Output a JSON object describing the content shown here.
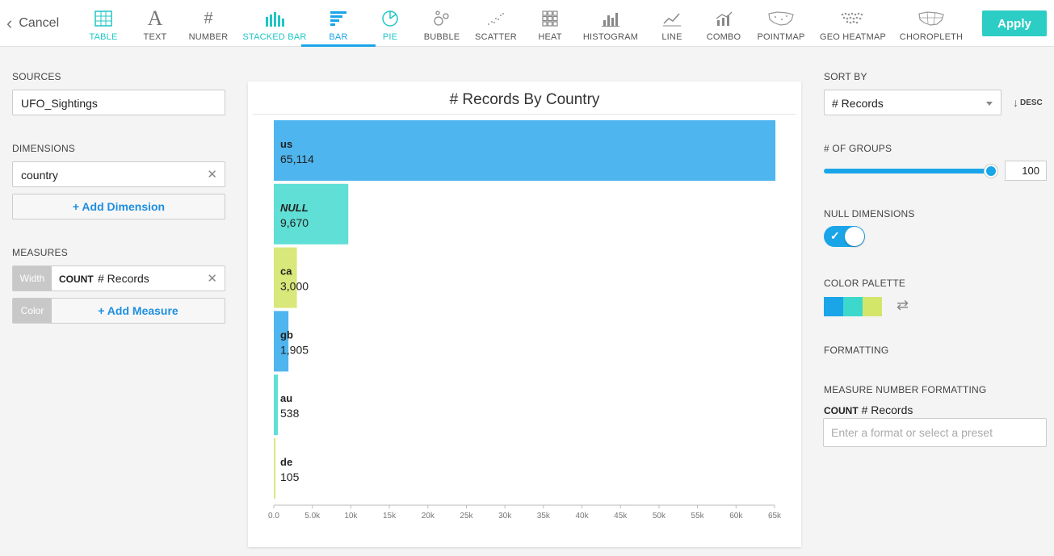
{
  "toolbar": {
    "cancel_label": "Cancel",
    "apply_label": "Apply",
    "chart_types": [
      {
        "label": "TABLE",
        "icon": "table-icon",
        "state": "teal"
      },
      {
        "label": "TEXT",
        "icon": "text-icon",
        "state": ""
      },
      {
        "label": "NUMBER",
        "icon": "number-icon",
        "state": ""
      },
      {
        "label": "STACKED BAR",
        "icon": "stacked-bar-icon",
        "state": "teal"
      },
      {
        "label": "BAR",
        "icon": "bar-icon",
        "state": "active"
      },
      {
        "label": "PIE",
        "icon": "pie-icon",
        "state": "teal"
      },
      {
        "label": "BUBBLE",
        "icon": "bubble-icon",
        "state": ""
      },
      {
        "label": "SCATTER",
        "icon": "scatter-icon",
        "state": ""
      },
      {
        "label": "HEAT",
        "icon": "heat-icon",
        "state": ""
      },
      {
        "label": "HISTOGRAM",
        "icon": "histogram-icon",
        "state": ""
      },
      {
        "label": "LINE",
        "icon": "line-icon",
        "state": ""
      },
      {
        "label": "COMBO",
        "icon": "combo-icon",
        "state": ""
      },
      {
        "label": "POINTMAP",
        "icon": "pointmap-icon",
        "state": ""
      },
      {
        "label": "GEO HEATMAP",
        "icon": "geo-heatmap-icon",
        "state": ""
      },
      {
        "label": "CHOROPLETH",
        "icon": "choropleth-icon",
        "state": ""
      }
    ]
  },
  "left": {
    "sources_title": "SOURCES",
    "source_value": "UFO_Sightings",
    "dimensions_title": "DIMENSIONS",
    "dimension_value": "country",
    "add_dimension_label": "+ Add Dimension",
    "measures_title": "MEASURES",
    "measure_width_tag": "Width",
    "measure_agg": "COUNT",
    "measure_name": "# Records",
    "measure_color_tag": "Color",
    "add_measure_label": "+ Add Measure"
  },
  "right": {
    "sort_by_title": "SORT BY",
    "sort_by_value": "# Records",
    "sort_dir": "DESC",
    "groups_title": "# OF GROUPS",
    "groups_value": "100",
    "groups_fraction": 1.0,
    "null_dims_title": "NULL DIMENSIONS",
    "null_dims_on": true,
    "palette_title": "COLOR PALETTE",
    "palette": [
      "#1aa5e8",
      "#3dd8cc",
      "#d4e66a"
    ],
    "formatting_title": "FORMATTING",
    "measure_formatting_title": "MEASURE NUMBER FORMATTING",
    "fmt_agg": "COUNT",
    "fmt_measure": "# Records",
    "fmt_placeholder": "Enter a format or select a preset"
  },
  "chart_data": {
    "type": "bar",
    "orientation": "horizontal",
    "title": "# Records By Country",
    "categories": [
      "us",
      "NULL",
      "ca",
      "gb",
      "au",
      "de"
    ],
    "values": [
      65114,
      9670,
      3000,
      1905,
      538,
      105
    ],
    "value_labels": [
      "65,114",
      "9,670",
      "3,000",
      "1,905",
      "538",
      "105"
    ],
    "colors": [
      "#4fb5ee",
      "#5fdfd5",
      "#d8e87a",
      "#4fb5ee",
      "#5fdfd5",
      "#d8e87a"
    ],
    "xlim": [
      0,
      65000
    ],
    "ticks": [
      0,
      5000,
      10000,
      15000,
      20000,
      25000,
      30000,
      35000,
      40000,
      45000,
      50000,
      55000,
      60000,
      65000
    ],
    "tick_labels": [
      "0.0",
      "5.0k",
      "10k",
      "15k",
      "20k",
      "25k",
      "30k",
      "35k",
      "40k",
      "45k",
      "50k",
      "55k",
      "60k",
      "65k"
    ]
  }
}
